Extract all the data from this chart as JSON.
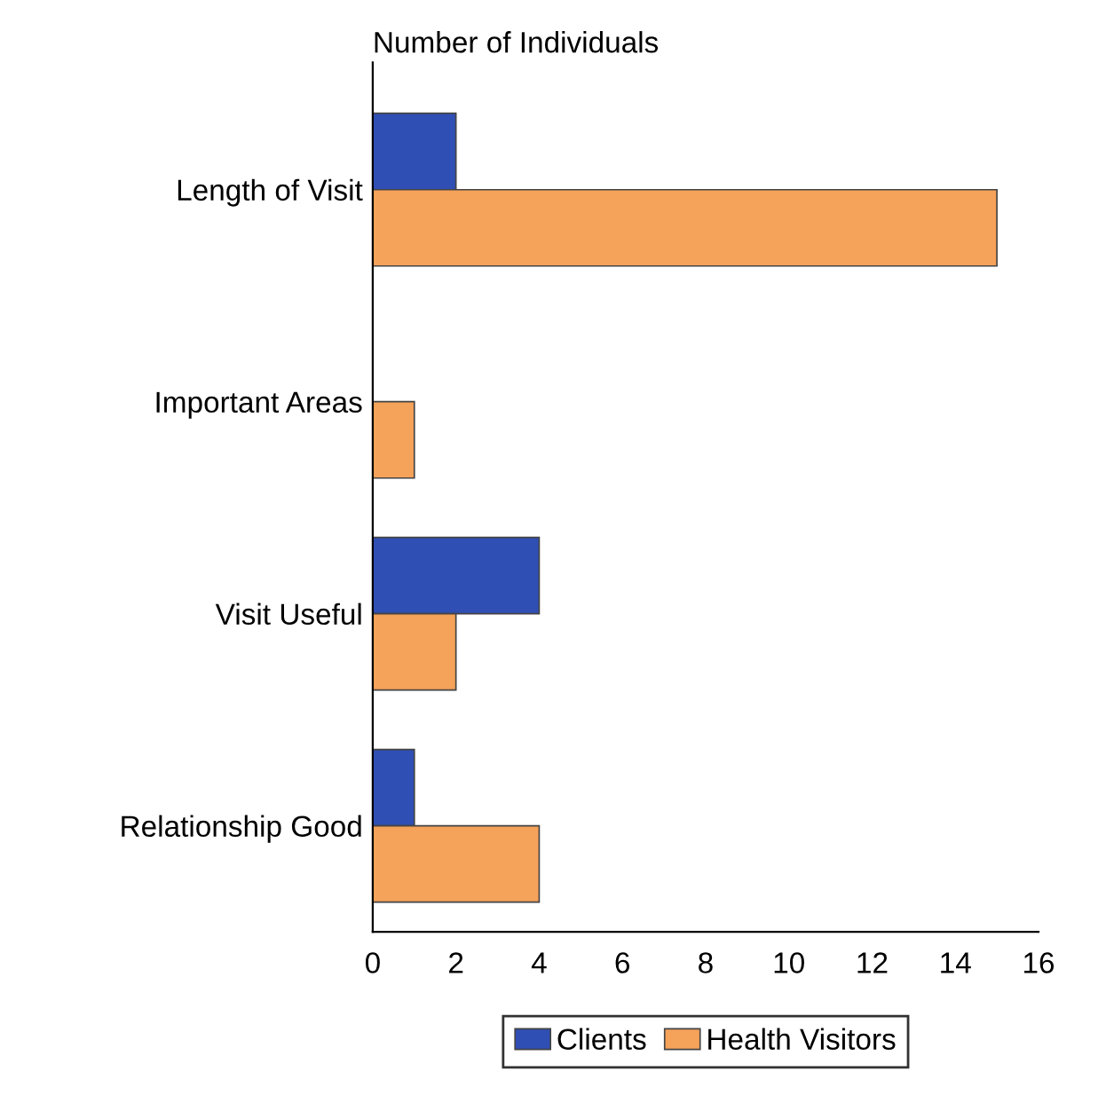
{
  "chart_data": {
    "type": "bar",
    "orientation": "horizontal",
    "xlabel": "Number of Individuals",
    "categories": [
      "Length of Visit",
      "Important Areas",
      "Visit Useful",
      "Relationship Good"
    ],
    "series": [
      {
        "name": "Clients",
        "color": "#2f4fb4",
        "values": [
          2,
          null,
          4,
          1
        ]
      },
      {
        "name": "Health Visitors",
        "color": "#f5a25a",
        "values": [
          15,
          1,
          2,
          4
        ]
      }
    ],
    "xlim": [
      0,
      16
    ],
    "xticks": [
      0,
      2,
      4,
      6,
      8,
      10,
      12,
      14,
      16
    ],
    "grid": false,
    "legend": "bottom"
  }
}
